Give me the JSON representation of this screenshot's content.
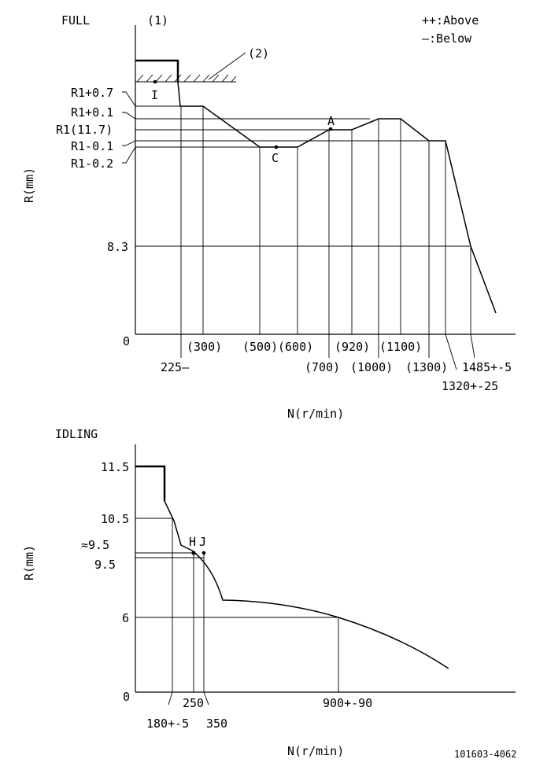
{
  "full": {
    "title": "FULL",
    "callout1": "(1)",
    "callout2": "(2)",
    "legend_above": "++:Above",
    "legend_below": "—:Below",
    "y_axis_label": "R(mm)",
    "x_axis_label": "N(r/min)",
    "y_labels": {
      "r1_plus_07": "R1+0.7",
      "r1_plus_01": "R1+0.1",
      "r1": "R1(11.7)",
      "r1_minus_01": "R1-0.1",
      "r1_minus_02": "R1-0.2",
      "v83": "8.3",
      "zero": "0"
    },
    "point_labels": {
      "i": "I",
      "a": "A",
      "c": "C"
    },
    "x_labels": {
      "n225": "225—",
      "n300": "(300)",
      "n500": "(500)",
      "n600": "(600)",
      "n700": "(700)",
      "n920": "(920)",
      "n1000": "(1000)",
      "n1100": "(1100)",
      "n1300": "(1300)",
      "n1320": "1320+-25",
      "n1485": "1485+-5"
    }
  },
  "idling": {
    "title": "IDLING",
    "y_axis_label": "R(mm)",
    "x_axis_label": "N(r/min)",
    "y_labels": {
      "v115": "11.5",
      "v105": "10.5",
      "approx95": "≈9.5",
      "v95": "9.5",
      "v6": "6",
      "zero": "0"
    },
    "point_labels": {
      "h": "H",
      "j": "J"
    },
    "x_labels": {
      "n180": "180+-5",
      "n250": "250",
      "n350": "350",
      "n900": "900+-90"
    }
  },
  "drawing_number": "101603-4062"
}
